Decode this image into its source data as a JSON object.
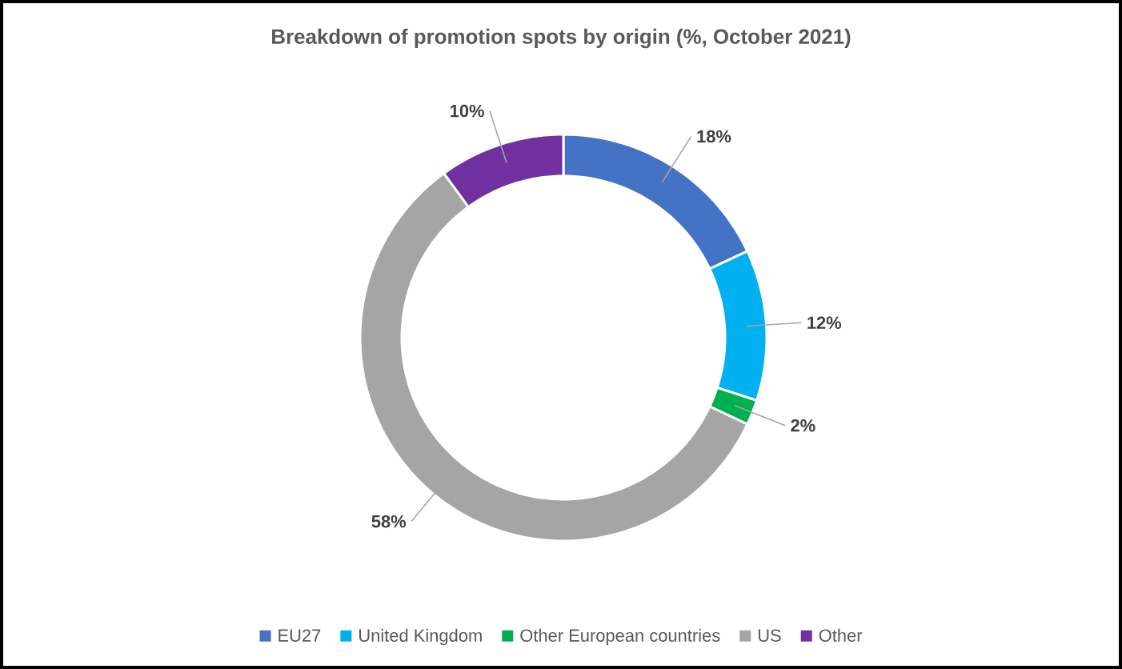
{
  "chart_data": {
    "type": "donut",
    "title": "Breakdown of promotion spots by origin (%, October 2021)",
    "categories": [
      "EU27",
      "United Kingdom",
      "Other European countries",
      "US",
      "Other"
    ],
    "values": [
      18,
      12,
      2,
      58,
      10
    ],
    "colors": [
      "#4472c4",
      "#00b0f0",
      "#00b050",
      "#a5a5a5",
      "#7030a0"
    ],
    "value_labels": [
      "18%",
      "12%",
      "2%",
      "58%",
      "10%"
    ],
    "legend": "bottom"
  }
}
